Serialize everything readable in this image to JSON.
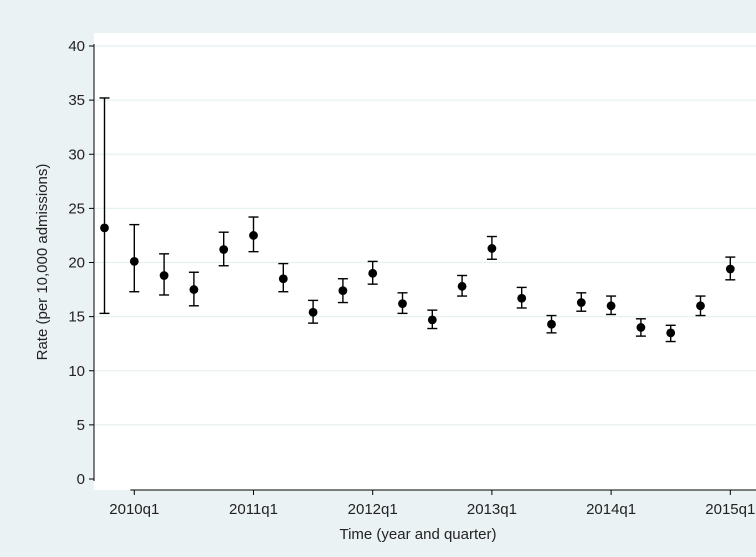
{
  "chart_data": {
    "type": "scatter",
    "xlabel": "Time (year and quarter)",
    "ylabel": "Rate (per 10,000 admissions)",
    "ylim": [
      0,
      40
    ],
    "yticks": [
      "0",
      "5",
      "10",
      "15",
      "20",
      "25",
      "30",
      "35",
      "40"
    ],
    "xticks": [
      "2010q1",
      "2011q1",
      "2012q1",
      "2013q1",
      "2014q1",
      "2015q1"
    ],
    "grid": true,
    "points": [
      {
        "x": "2009q4",
        "y": 23.2,
        "lo": 15.3,
        "hi": 35.2
      },
      {
        "x": "2010q1",
        "y": 20.1,
        "lo": 17.3,
        "hi": 23.5
      },
      {
        "x": "2010q2",
        "y": 18.8,
        "lo": 17.0,
        "hi": 20.8
      },
      {
        "x": "2010q3",
        "y": 17.5,
        "lo": 16.0,
        "hi": 19.1
      },
      {
        "x": "2010q4",
        "y": 21.2,
        "lo": 19.7,
        "hi": 22.8
      },
      {
        "x": "2011q1",
        "y": 22.5,
        "lo": 21.0,
        "hi": 24.2
      },
      {
        "x": "2011q2",
        "y": 18.5,
        "lo": 17.3,
        "hi": 19.9
      },
      {
        "x": "2011q3",
        "y": 15.4,
        "lo": 14.4,
        "hi": 16.5
      },
      {
        "x": "2011q4",
        "y": 17.4,
        "lo": 16.3,
        "hi": 18.5
      },
      {
        "x": "2012q1",
        "y": 19.0,
        "lo": 18.0,
        "hi": 20.1
      },
      {
        "x": "2012q2",
        "y": 16.2,
        "lo": 15.3,
        "hi": 17.2
      },
      {
        "x": "2012q3",
        "y": 14.7,
        "lo": 13.9,
        "hi": 15.6
      },
      {
        "x": "2012q4",
        "y": 17.8,
        "lo": 16.9,
        "hi": 18.8
      },
      {
        "x": "2013q1",
        "y": 21.3,
        "lo": 20.3,
        "hi": 22.4
      },
      {
        "x": "2013q2",
        "y": 16.7,
        "lo": 15.8,
        "hi": 17.7
      },
      {
        "x": "2013q3",
        "y": 14.3,
        "lo": 13.5,
        "hi": 15.1
      },
      {
        "x": "2013q4",
        "y": 16.3,
        "lo": 15.5,
        "hi": 17.2
      },
      {
        "x": "2014q1",
        "y": 16.0,
        "lo": 15.2,
        "hi": 16.9
      },
      {
        "x": "2014q2",
        "y": 14.0,
        "lo": 13.2,
        "hi": 14.8
      },
      {
        "x": "2014q3",
        "y": 13.5,
        "lo": 12.7,
        "hi": 14.2
      },
      {
        "x": "2014q4",
        "y": 16.0,
        "lo": 15.1,
        "hi": 16.9
      },
      {
        "x": "2015q1",
        "y": 19.4,
        "lo": 18.4,
        "hi": 20.5
      }
    ],
    "colors": {
      "background": "#eaf2f3",
      "plot_area": "#ffffff",
      "grid": "#e8f1f2",
      "marker": "#000000"
    }
  }
}
